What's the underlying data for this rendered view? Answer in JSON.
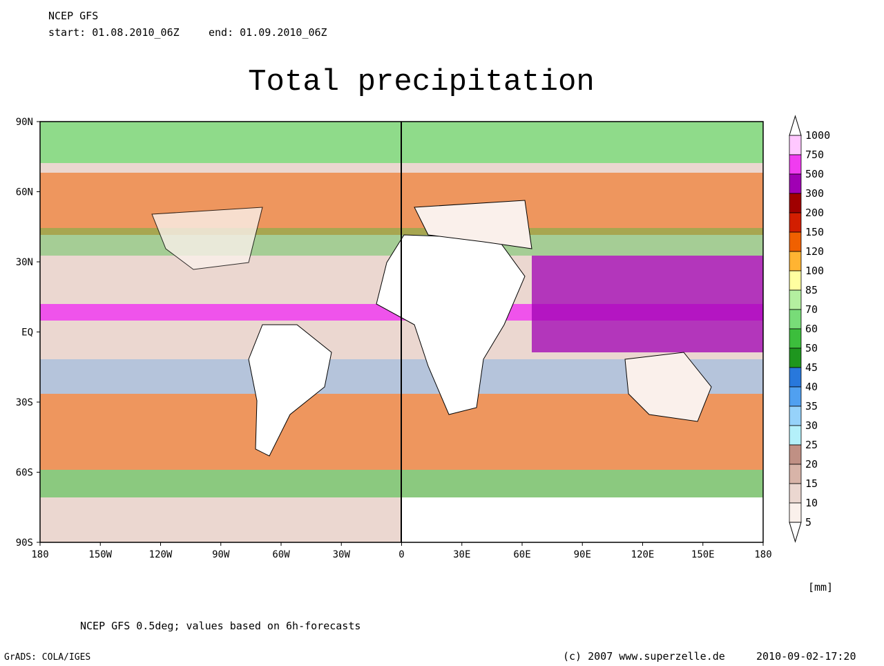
{
  "header": {
    "model": "NCEP GFS",
    "start": "start: 01.08.2010_06Z",
    "end": "end: 01.09.2010_06Z"
  },
  "title": "Total precipitation",
  "map": {
    "lat_labels": [
      "90N",
      "60N",
      "30N",
      "EQ",
      "30S",
      "60S",
      "90S"
    ],
    "lon_labels": [
      "180",
      "150W",
      "120W",
      "90W",
      "60W",
      "30W",
      "0",
      "30E",
      "60E",
      "90E",
      "120E",
      "150E",
      "180"
    ]
  },
  "colorbar": {
    "unit": "[mm]",
    "labels": [
      "1000",
      "750",
      "500",
      "300",
      "200",
      "150",
      "120",
      "100",
      "85",
      "70",
      "60",
      "50",
      "45",
      "40",
      "35",
      "30",
      "25",
      "20",
      "15",
      "10",
      "5"
    ],
    "colors": [
      "#ffc8ff",
      "#f03cf0",
      "#a000b4",
      "#a00000",
      "#d21e00",
      "#f06000",
      "#ffb432",
      "#ffffa0",
      "#b4f0a0",
      "#78dc78",
      "#3cbe3c",
      "#1e961e",
      "#2878dc",
      "#50a0f0",
      "#96d2fa",
      "#b4f0fa",
      "#c09084",
      "#d8b4a8",
      "#ebd7d0",
      "#faf0eb"
    ]
  },
  "footer": {
    "note": "NCEP GFS 0.5deg; values based on 6h-forecasts",
    "software": "GrADS: COLA/IGES",
    "copyright": "(c) 2007 www.superzelle.de",
    "timestamp": "2010-09-02-17:20"
  }
}
